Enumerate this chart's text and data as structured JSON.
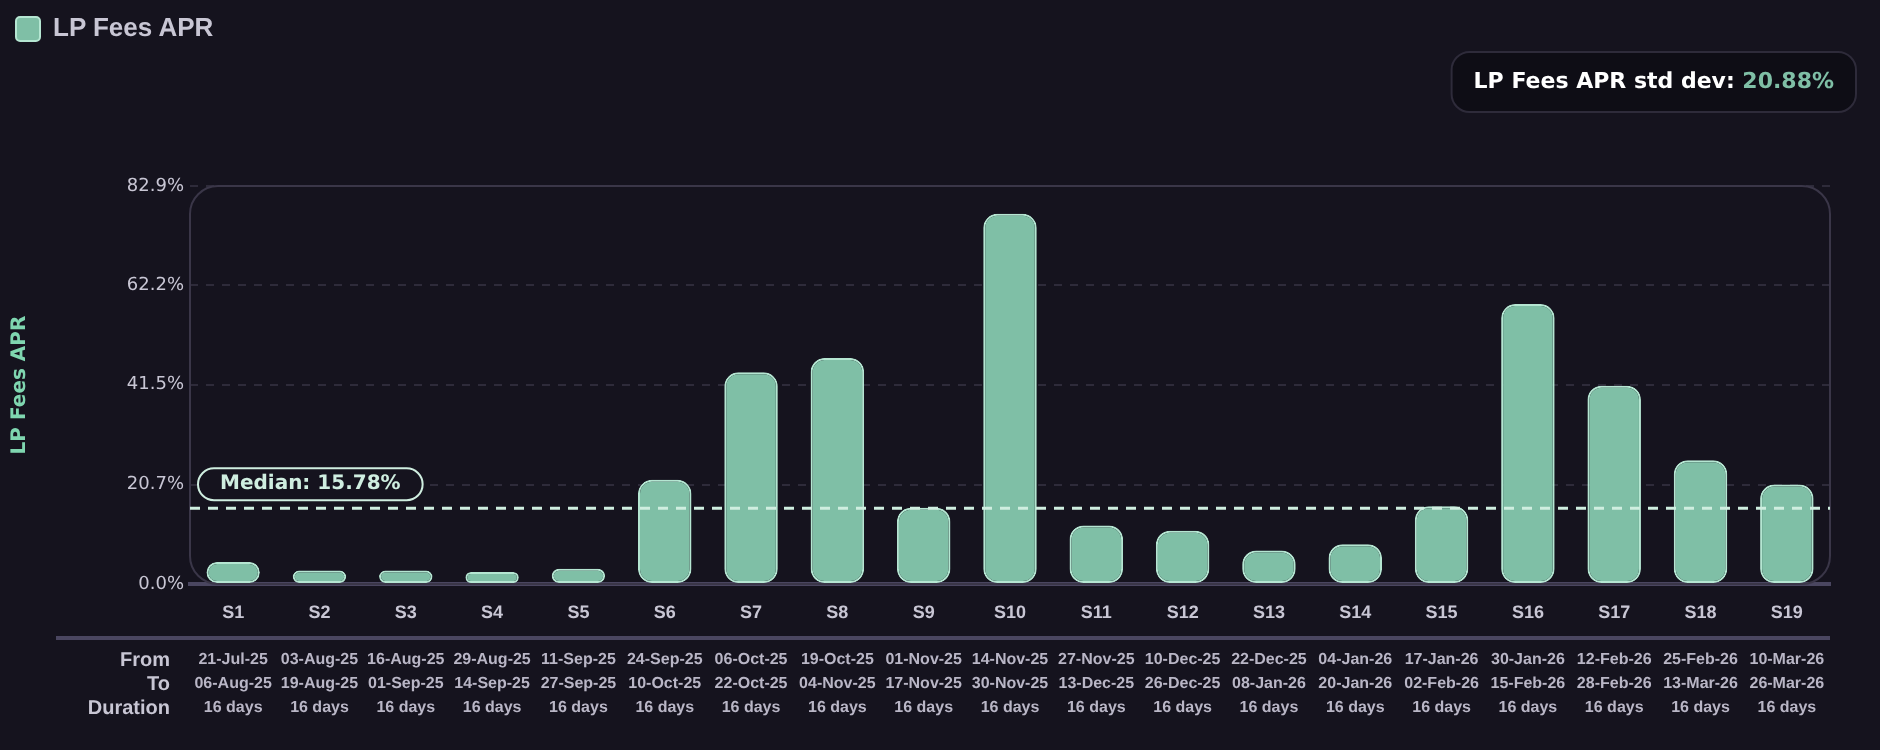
{
  "chart_data": {
    "type": "bar",
    "subtitle": "LP Fees APR std dev: 20.88%",
    "ylabel": "LP Fees APR",
    "categories": [
      "S1",
      "S2",
      "S3",
      "S4",
      "S5",
      "S6",
      "S7",
      "S8",
      "S9",
      "S10",
      "S11",
      "S12",
      "S13",
      "S14",
      "S15",
      "S16",
      "S17",
      "S18",
      "S19"
    ],
    "series": [
      {
        "name": "LP Fees APR",
        "color": "#7fbfa6",
        "values": [
          4.6,
          2.8,
          2.8,
          2.5,
          3.2,
          21.7,
          44.1,
          47.1,
          15.9,
          77.1,
          12.2,
          11.1,
          7.0,
          8.3,
          16.2,
          58.3,
          41.3,
          25.8,
          20.7
        ]
      }
    ],
    "ylim": [
      0,
      82.9
    ],
    "yticks": [
      {
        "value": 0,
        "label": "0.0%"
      },
      {
        "value": 20.7,
        "label": "20.7%"
      },
      {
        "value": 41.5,
        "label": "41.5%"
      },
      {
        "value": 62.2,
        "label": "62.2%"
      },
      {
        "value": 82.9,
        "label": "82.9%"
      }
    ],
    "grid": "y",
    "legend": "top left",
    "ref_lines": [
      {
        "axis": "y",
        "value": 15.78,
        "label": "Median: 15.78%",
        "color": "#cfeee0",
        "line_style": "dashed"
      }
    ],
    "annotations": [
      "From",
      "21-Jul-25",
      "03-Aug-25",
      "16-Aug-25",
      "29-Aug-25",
      "11-Sep-25",
      "24-Sep-25",
      "06-Oct-25",
      "19-Oct-25",
      "01-Nov-25",
      "14-Nov-25",
      "27-Nov-25",
      "10-Dec-25",
      "22-Dec-25",
      "04-Jan-26",
      "17-Jan-26",
      "30-Jan-26",
      "12-Feb-26",
      "25-Feb-26",
      "10-Mar-26",
      "To",
      "06-Aug-25",
      "19-Aug-25",
      "01-Sep-25",
      "14-Sep-25",
      "27-Sep-25",
      "10-Oct-25",
      "22-Oct-25",
      "04-Nov-25",
      "17-Nov-25",
      "30-Nov-25",
      "13-Dec-25",
      "26-Dec-25",
      "08-Jan-26",
      "20-Jan-26",
      "02-Feb-26",
      "15-Feb-26",
      "28-Feb-26",
      "13-Mar-26",
      "26-Mar-26",
      "Duration",
      "16 days",
      "16 days",
      "16 days",
      "16 days",
      "16 days",
      "16 days",
      "16 days",
      "16 days",
      "16 days",
      "16 days",
      "16 days",
      "16 days",
      "16 days",
      "16 days",
      "16 days",
      "16 days",
      "16 days",
      "16 days",
      "16 days"
    ]
  }
}
